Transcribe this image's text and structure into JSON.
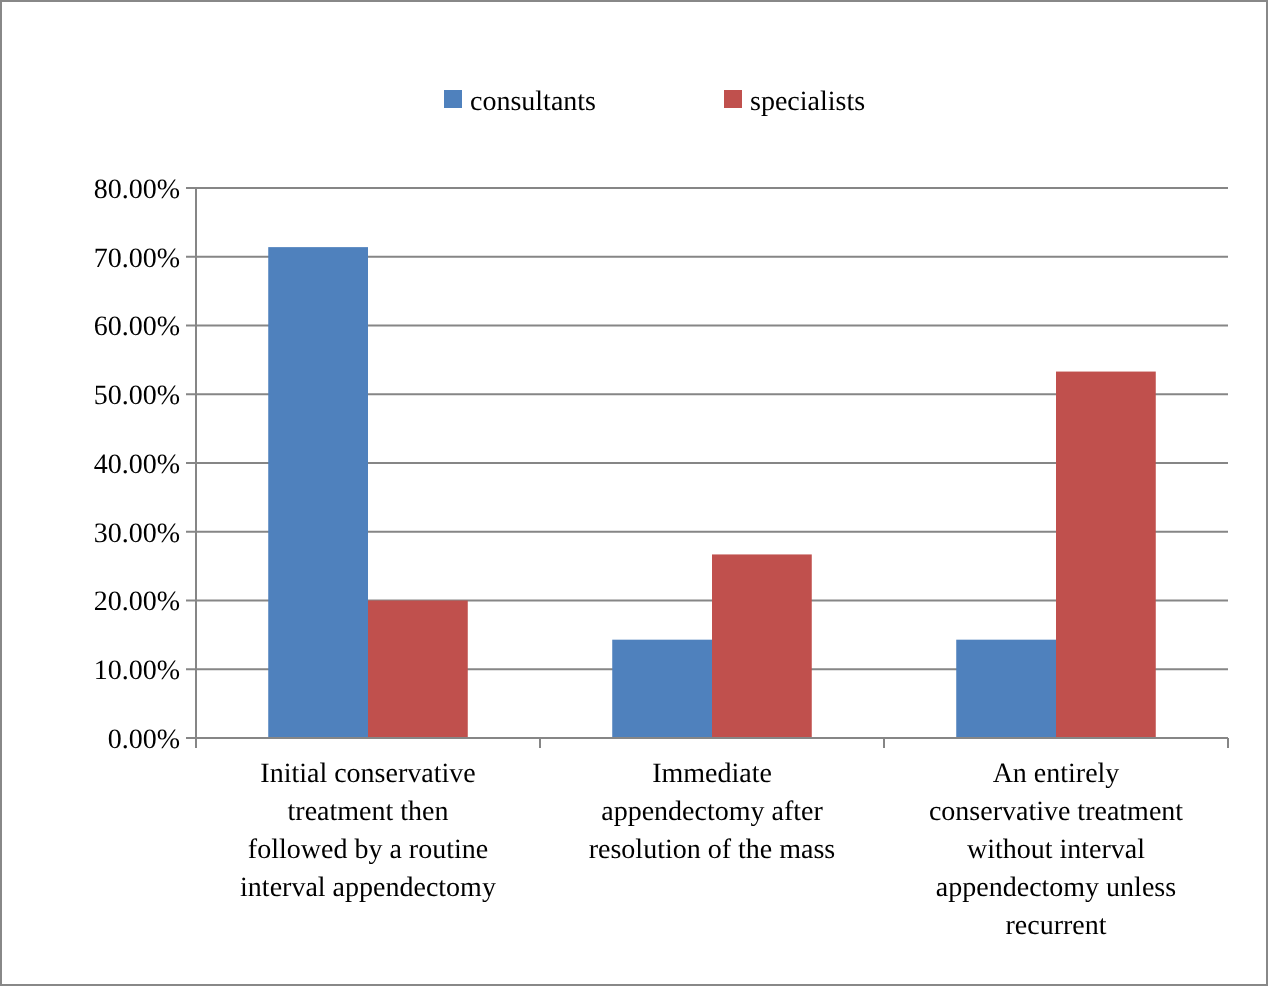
{
  "chart_data": {
    "type": "bar",
    "categories": [
      "Initial conservative\ntreatment then\nfollowed by a routine\ninterval appendectomy",
      "Immediate\nappendectomy after\nresolution of the mass",
      "An entirely\nconservative treatment\nwithout interval\nappendectomy unless\nrecurrent"
    ],
    "series": [
      {
        "name": "consultants",
        "color": "#4f81bd",
        "values": [
          71.4,
          14.3,
          14.3
        ]
      },
      {
        "name": "specialists",
        "color": "#c0504d",
        "values": [
          20,
          26.7,
          53.3
        ]
      }
    ],
    "ylim": [
      0,
      80
    ],
    "yticks": [
      {
        "value": 0,
        "label": "0.00%"
      },
      {
        "value": 10,
        "label": "10.00%"
      },
      {
        "value": 20,
        "label": "20.00%"
      },
      {
        "value": 30,
        "label": "30.00%"
      },
      {
        "value": 40,
        "label": "40.00%"
      },
      {
        "value": 50,
        "label": "50.00%"
      },
      {
        "value": 60,
        "label": "60.00%"
      },
      {
        "value": 70,
        "label": "70.00%"
      },
      {
        "value": 80,
        "label": "80.00%"
      }
    ],
    "grid": "y",
    "legend": "top"
  }
}
